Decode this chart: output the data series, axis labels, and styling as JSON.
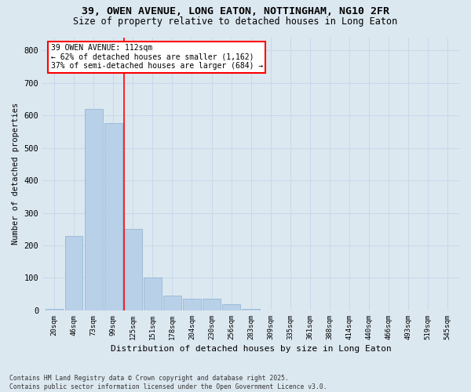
{
  "title_line1": "39, OWEN AVENUE, LONG EATON, NOTTINGHAM, NG10 2FR",
  "title_line2": "Size of property relative to detached houses in Long Eaton",
  "xlabel": "Distribution of detached houses by size in Long Eaton",
  "ylabel": "Number of detached properties",
  "bar_color": "#b8d0e8",
  "bar_edge_color": "#8ab0d0",
  "categories": [
    "20sqm",
    "46sqm",
    "73sqm",
    "99sqm",
    "125sqm",
    "151sqm",
    "178sqm",
    "204sqm",
    "230sqm",
    "256sqm",
    "283sqm",
    "309sqm",
    "335sqm",
    "361sqm",
    "388sqm",
    "414sqm",
    "440sqm",
    "466sqm",
    "493sqm",
    "519sqm",
    "545sqm"
  ],
  "values": [
    5,
    230,
    620,
    575,
    250,
    100,
    45,
    35,
    35,
    18,
    5,
    0,
    0,
    0,
    0,
    0,
    0,
    0,
    0,
    0,
    0
  ],
  "ylim": [
    0,
    840
  ],
  "yticks": [
    0,
    100,
    200,
    300,
    400,
    500,
    600,
    700,
    800
  ],
  "property_line_x": 3.55,
  "annotation_text": "39 OWEN AVENUE: 112sqm\n← 62% of detached houses are smaller (1,162)\n37% of semi-detached houses are larger (684) →",
  "annotation_box_color": "white",
  "annotation_box_edge_color": "red",
  "property_line_color": "red",
  "grid_color": "#c8d8ea",
  "background_color": "#dce8f0",
  "footer_line1": "Contains HM Land Registry data © Crown copyright and database right 2025.",
  "footer_line2": "Contains public sector information licensed under the Open Government Licence v3.0."
}
